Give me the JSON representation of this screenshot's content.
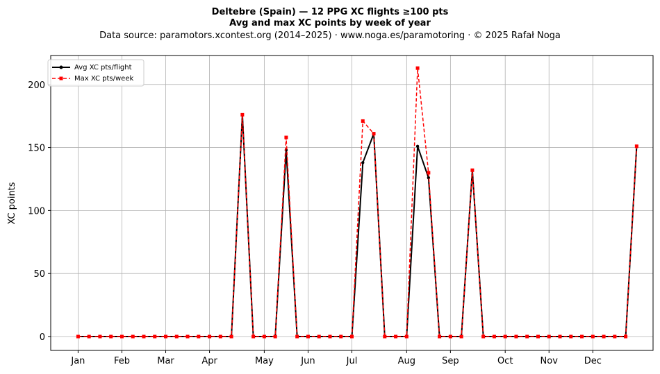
{
  "chart_data": {
    "type": "line",
    "title": "Deltebre (Spain)  —  12 PPG XC flights ≥100 pts",
    "subtitle": "Avg and max XC points by week of year",
    "source": "Data source: paramotors.xcontest.org (2014–2025)  ·  www.noga.es/paramotoring  ·  © 2025 Rafał Noga",
    "xlabel": "",
    "ylabel": "XC points",
    "xlim": [
      -1.5,
      53.5
    ],
    "ylim": [
      -11,
      223
    ],
    "yticks": [
      0,
      50,
      100,
      150,
      200
    ],
    "month_ticks": [
      {
        "label": "Jan",
        "week": 1
      },
      {
        "label": "Feb",
        "week": 5
      },
      {
        "label": "Mar",
        "week": 9
      },
      {
        "label": "Apr",
        "week": 13
      },
      {
        "label": "May",
        "week": 18
      },
      {
        "label": "Jun",
        "week": 22
      },
      {
        "label": "Jul",
        "week": 26
      },
      {
        "label": "Aug",
        "week": 31
      },
      {
        "label": "Sep",
        "week": 35
      },
      {
        "label": "Oct",
        "week": 40
      },
      {
        "label": "Nov",
        "week": 44
      },
      {
        "label": "Dec",
        "week": 48
      }
    ],
    "grid": true,
    "legend_position": "top-left",
    "x": [
      1,
      2,
      3,
      4,
      5,
      6,
      7,
      8,
      9,
      10,
      11,
      12,
      13,
      14,
      15,
      16,
      17,
      18,
      19,
      20,
      21,
      22,
      23,
      24,
      25,
      26,
      27,
      28,
      29,
      30,
      31,
      32,
      33,
      34,
      35,
      36,
      37,
      38,
      39,
      40,
      41,
      42,
      43,
      44,
      45,
      46,
      47,
      48,
      49,
      50,
      51,
      52
    ],
    "series": [
      {
        "name": "Avg XC pts/flight",
        "color": "#000000",
        "style": "solid",
        "marker": "circle",
        "values": [
          0,
          0,
          0,
          0,
          0,
          0,
          0,
          0,
          0,
          0,
          0,
          0,
          0,
          0,
          0,
          176,
          0,
          0,
          0,
          148,
          0,
          0,
          0,
          0,
          0,
          0,
          138,
          161,
          0,
          0,
          0,
          151,
          126,
          0,
          0,
          0,
          132,
          0,
          0,
          0,
          0,
          0,
          0,
          0,
          0,
          0,
          0,
          0,
          0,
          0,
          0,
          151
        ]
      },
      {
        "name": "Max XC pts/week",
        "color": "#ff0000",
        "style": "dashed",
        "marker": "square",
        "values": [
          0,
          0,
          0,
          0,
          0,
          0,
          0,
          0,
          0,
          0,
          0,
          0,
          0,
          0,
          0,
          176,
          0,
          0,
          0,
          158,
          0,
          0,
          0,
          0,
          0,
          0,
          171,
          161,
          0,
          0,
          0,
          213,
          130,
          0,
          0,
          0,
          132,
          0,
          0,
          0,
          0,
          0,
          0,
          0,
          0,
          0,
          0,
          0,
          0,
          0,
          0,
          151
        ]
      }
    ]
  }
}
